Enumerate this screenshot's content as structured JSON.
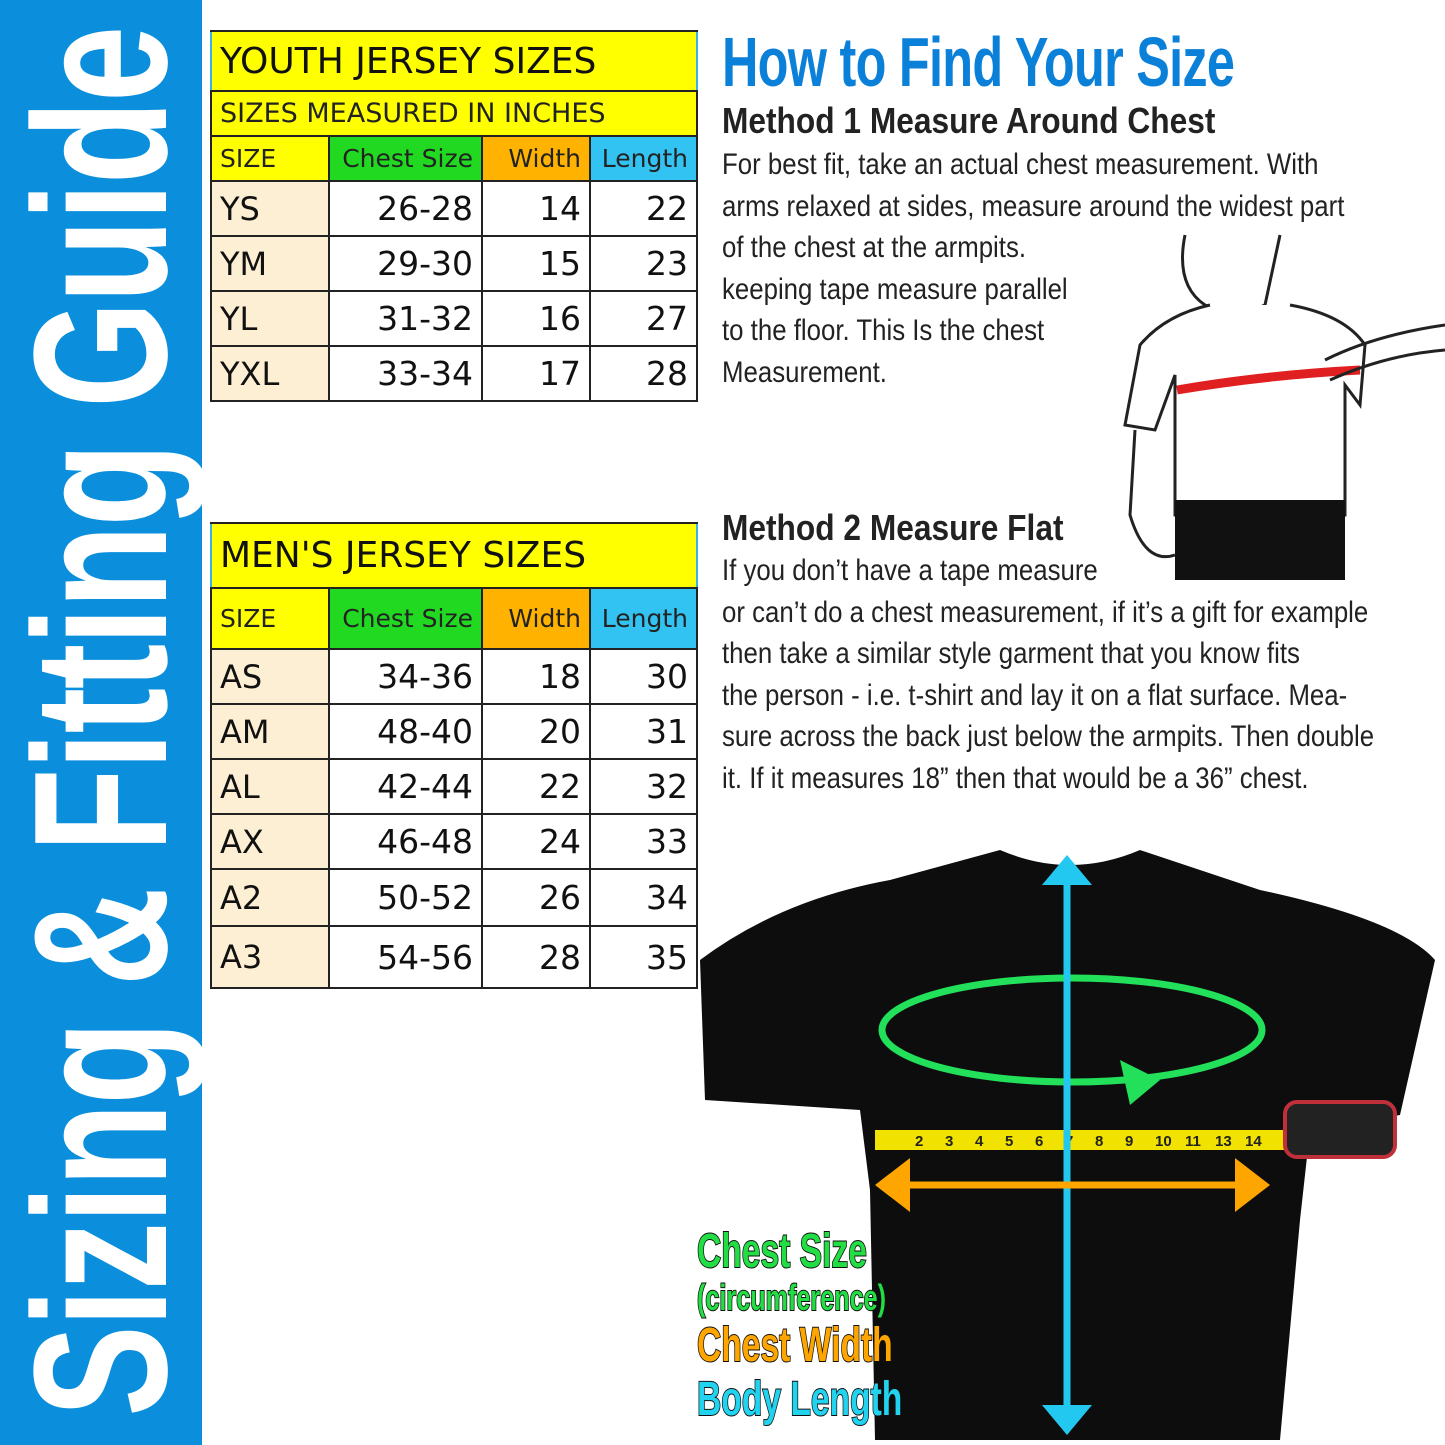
{
  "sidebar": {
    "title": "Sizing & Fitting Guide",
    "color": "#0b8fdc"
  },
  "youth": {
    "title": "YOUTH JERSEY SIZES",
    "subtitle": "SIZES MEASURED IN INCHES",
    "headers": [
      "SIZE",
      "Chest Size",
      "Width",
      "Length"
    ],
    "rows": [
      [
        "YS",
        "26-28",
        "14",
        "22"
      ],
      [
        "YM",
        "29-30",
        "15",
        "23"
      ],
      [
        "YL",
        "31-32",
        "16",
        "27"
      ],
      [
        "YXL",
        "33-34",
        "17",
        "28"
      ]
    ]
  },
  "men": {
    "title": "MEN'S JERSEY SIZES",
    "headers": [
      "SIZE",
      "Chest Size",
      "Width",
      "Length"
    ],
    "rows": [
      [
        "AS",
        "34-36",
        "18",
        "30"
      ],
      [
        "AM",
        "48-40",
        "20",
        "31"
      ],
      [
        "AL",
        "42-44",
        "22",
        "32"
      ],
      [
        "AX",
        "46-48",
        "24",
        "33"
      ],
      [
        "A2",
        "50-52",
        "26",
        "34"
      ],
      [
        "A3",
        "54-56",
        "28",
        "35"
      ]
    ]
  },
  "guide": {
    "title": "How to Find Your Size",
    "method1": {
      "heading": "Method 1 Measure Around Chest",
      "lines": [
        "For best fit, take an actual chest measurement. With",
        "arms relaxed at sides, measure around the widest part",
        "of the chest at the armpits.",
        "keeping tape measure parallel",
        "to the floor. This Is the chest",
        "Measurement."
      ]
    },
    "method2": {
      "heading": "Method 2 Measure Flat",
      "lines": [
        "If you don’t have a tape measure",
        " or can’t do a chest measurement, if it’s a gift for example",
        "then take a similar style garment that you know fits",
        "the person - i.e. t-shirt and lay it on a flat surface. Mea-",
        "sure across the back just below the armpits. Then double",
        "it. If it measures 18” then that would be a 36” chest."
      ]
    }
  },
  "legend": {
    "chest_size": "Chest Size",
    "circumference": "(circumference)",
    "chest_width": "Chest Width",
    "body_length": "Body Length",
    "colors": {
      "chest_size": "#22dd44",
      "chest_width": "#ffa500",
      "body_length": "#22d3f0"
    }
  },
  "tape_numbers": [
    "2",
    "3",
    "4",
    "5",
    "6",
    "7",
    "8",
    "9",
    "10",
    "11",
    "13",
    "14"
  ]
}
